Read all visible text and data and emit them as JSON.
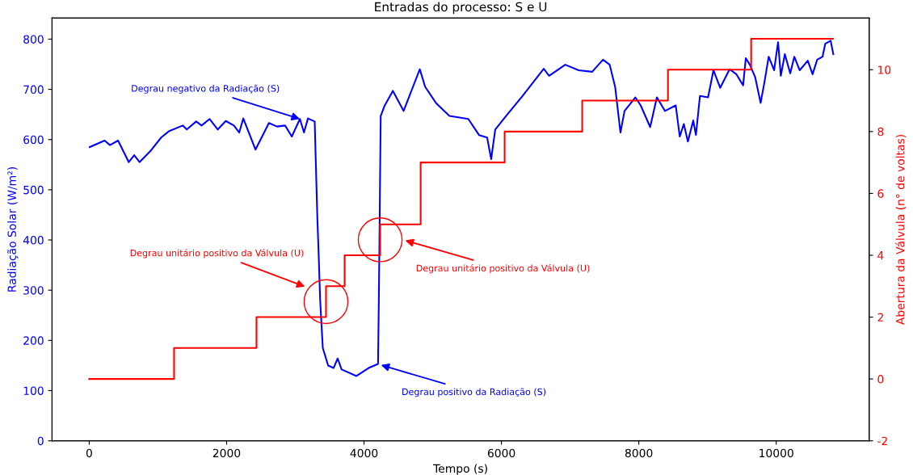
{
  "chart_data": {
    "type": "line",
    "title": "Entradas do processo: S e U",
    "xlabel": "Tempo (s)",
    "ylabel": "Radiação Solar (W/m²)",
    "y2label": "Abertura da Válvula (n° de voltas)",
    "xlim": [
      -541,
      11353
    ],
    "xticks": [
      0,
      2000,
      4000,
      6000,
      8000,
      10000
    ],
    "ylim": [
      0,
      842
    ],
    "yticks": [
      0,
      100,
      200,
      300,
      400,
      500,
      600,
      700,
      800
    ],
    "y2lim": [
      -2,
      11.67
    ],
    "y2ticks": [
      -2,
      0,
      2,
      4,
      6,
      8,
      10
    ],
    "grid": false,
    "series": [
      {
        "color": "#0000ff",
        "x": [
          8,
          224,
          302,
          420,
          576,
          655,
          733,
          890,
          1047,
          1165,
          1361,
          1420,
          1557,
          1635,
          1753,
          1871,
          1988,
          2106,
          2184,
          2243,
          2420,
          2616,
          2733,
          2851,
          2949,
          3067,
          3126,
          3184,
          3282,
          3321,
          3341,
          3361,
          3400,
          3478,
          3557,
          3616,
          3674,
          3890,
          4067,
          4204,
          4216,
          4243,
          4302,
          4420,
          4576,
          4812,
          4890,
          5047,
          5243,
          5518,
          5674,
          5792,
          5851,
          5910,
          6067,
          6302,
          6616,
          6694,
          6929,
          7125,
          7321,
          7478,
          7576,
          7655,
          7733,
          7792,
          7949,
          8027,
          8165,
          8263,
          8380,
          8537,
          8596,
          8655,
          8714,
          8792,
          8831,
          8890,
          9008,
          9086,
          9184,
          9321,
          9420,
          9518,
          9557,
          9616,
          9694,
          9773,
          9831,
          9890,
          9969,
          10027,
          10067,
          10125,
          10204,
          10263,
          10341,
          10459,
          10529,
          10596,
          10674,
          10714,
          10792,
          10831
        ],
        "values": [
          585,
          598,
          589,
          598,
          555,
          569,
          555,
          577,
          604,
          617,
          628,
          620,
          636,
          628,
          641,
          620,
          637,
          628,
          614,
          642,
          580,
          633,
          626,
          628,
          606,
          641,
          614,
          642,
          636,
          443,
          367,
          282,
          185,
          150,
          145,
          164,
          142,
          129,
          145,
          153,
          282,
          647,
          668,
          697,
          657,
          740,
          705,
          673,
          647,
          641,
          609,
          604,
          561,
          620,
          647,
          686,
          741,
          727,
          749,
          738,
          735,
          759,
          749,
          705,
          614,
          657,
          684,
          668,
          625,
          684,
          657,
          668,
          606,
          631,
          596,
          638,
          609,
          687,
          684,
          738,
          703,
          740,
          730,
          708,
          762,
          749,
          724,
          673,
          716,
          765,
          738,
          794,
          727,
          770,
          732,
          765,
          738,
          757,
          730,
          759,
          765,
          791,
          797,
          770
        ]
      },
      {
        "type": "step",
        "axis": "y2",
        "color": "#ff0000",
        "x": [
          0,
          1235,
          2435,
          3447,
          3718,
          4235,
          4824,
          6047,
          7176,
          8424,
          9635,
          10824
        ],
        "values": [
          0,
          1,
          2,
          3,
          4,
          5,
          7,
          8,
          9,
          10,
          11,
          11
        ]
      },
      {
        "type": "scatter",
        "axis": "y2",
        "color": "#ff0000",
        "marker": "circle",
        "x": [
          3447,
          4235
        ],
        "values": [
          2.5,
          4.5
        ]
      }
    ],
    "annotations": [
      {
        "text": "Degrau negativo da Radiação (S)",
        "x": 3067,
        "y": 641
      },
      {
        "text": "Degrau unitário positivo da Válvula (U)",
        "x": 4600,
        "y": 399
      },
      {
        "text": "Degrau unitário positivo da Válvula (U)",
        "x": 3141,
        "y": 307
      },
      {
        "text": "Degrau positivo da Radiação (S)",
        "x": 4247,
        "y": 151
      }
    ]
  }
}
